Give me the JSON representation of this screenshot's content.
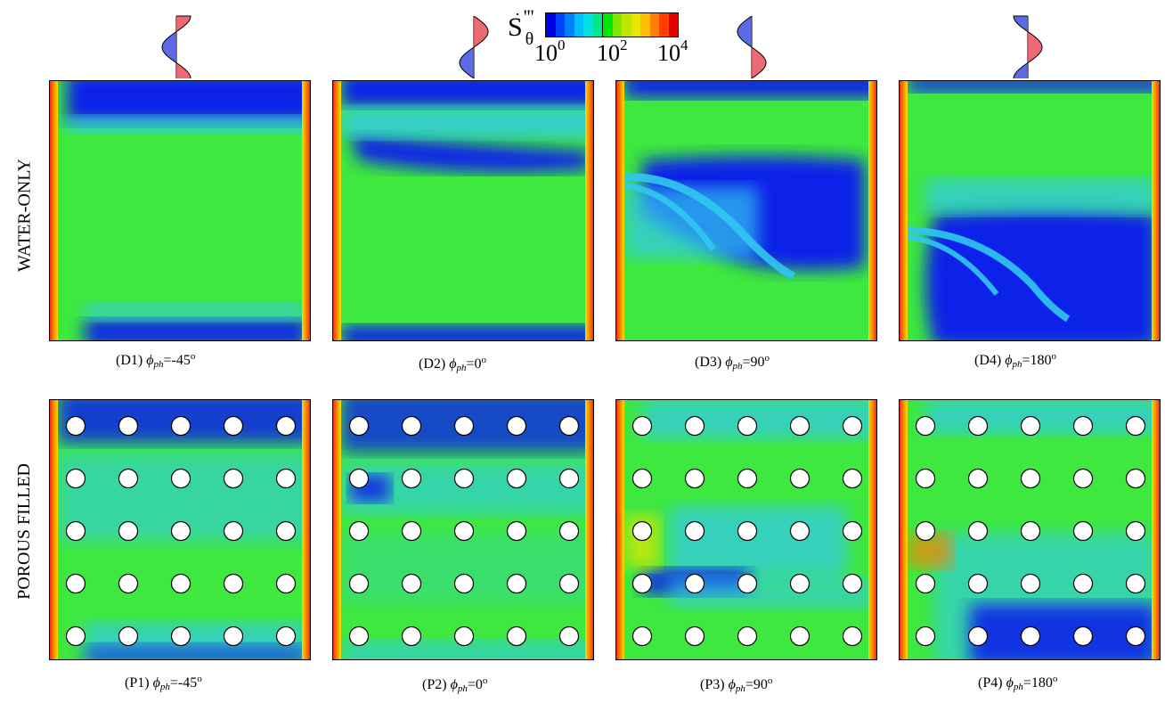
{
  "row_labels": [
    "WATER-ONLY",
    "POROUS FILLED"
  ],
  "colorbar": {
    "symbol": "S",
    "symbol_superscript": "'''",
    "symbol_subscript": "θ",
    "tick_bases": [
      "10",
      "10",
      "10"
    ],
    "tick_exponents": [
      "0",
      "2",
      "4"
    ],
    "colors": [
      "#0000e6",
      "#0040ff",
      "#0080ff",
      "#00bfff",
      "#00e0e0",
      "#00e68a",
      "#00e600",
      "#80e600",
      "#c0e600",
      "#e6e600",
      "#ffbf00",
      "#ff8000",
      "#ff4000",
      "#e60000"
    ]
  },
  "panels": [
    {
      "id": "D1",
      "phase_var": "ϕ",
      "phase_sub": "ph",
      "phase_value": "=-45",
      "degree": "o"
    },
    {
      "id": "D2",
      "phase_var": "ϕ",
      "phase_sub": "ph",
      "phase_value": "=0",
      "degree": "o"
    },
    {
      "id": "D3",
      "phase_var": "ϕ",
      "phase_sub": "ph",
      "phase_value": "=90",
      "degree": "o"
    },
    {
      "id": "D4",
      "phase_var": "ϕ",
      "phase_sub": "ph",
      "phase_value": "=180",
      "degree": "o"
    },
    {
      "id": "P1",
      "phase_var": "ϕ",
      "phase_sub": "ph",
      "phase_value": "=-45",
      "degree": "o"
    },
    {
      "id": "P2",
      "phase_var": "ϕ",
      "phase_sub": "ph",
      "phase_value": "=0",
      "degree": "o"
    },
    {
      "id": "P3",
      "phase_var": "ϕ",
      "phase_sub": "ph",
      "phase_value": "=90",
      "degree": "o"
    },
    {
      "id": "P4",
      "phase_var": "ϕ",
      "phase_sub": "ph",
      "phase_value": "=180",
      "degree": "o"
    }
  ],
  "colors": {
    "green": "#3ee83e",
    "deep_blue": "#0a20e8",
    "cyan": "#30c8f0",
    "red": "#e61a1a",
    "wave_red": "#e8505a",
    "wave_blue": "#4050e0"
  },
  "cylinder_grid": {
    "rows": 5,
    "columns": 5
  }
}
